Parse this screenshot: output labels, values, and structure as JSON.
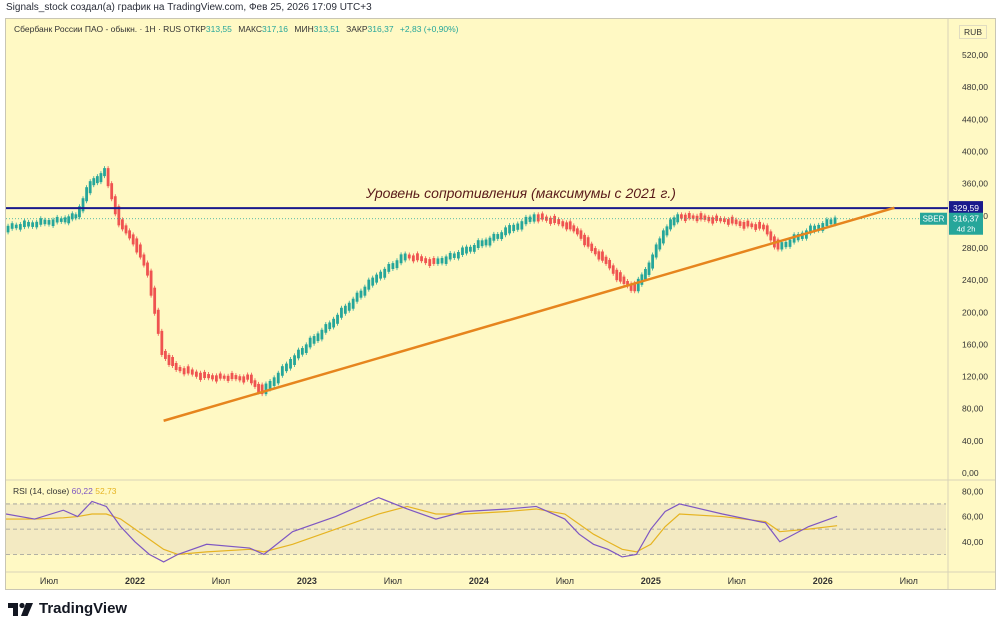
{
  "header": {
    "caption": "Signals_stock создал(а) график на TradingView.com, Фев 25, 2026 17:09 UTC+3"
  },
  "legend": {
    "symbol": "Сбербанк России ПАО - обыкн. · 1Н · RUS",
    "open_label": "ОТКР",
    "open": "313,55",
    "high_label": "МАКС",
    "high": "317,16",
    "low_label": "МИН",
    "low": "313,51",
    "close_label": "ЗАКР",
    "close": "316,37",
    "change": "+2,83 (+0,90%)"
  },
  "currency": "RUB",
  "annotation": "Уровень сопротивления (максимумы с 2021 г.)",
  "price_tags": {
    "resistance": "329,59",
    "ticker": "SBER",
    "last": "316,37",
    "countdown": "4d 2h"
  },
  "rsi_legend": {
    "label": "RSI (14, close)",
    "value": "60,22",
    "ma": "52,73"
  },
  "colors": {
    "background": "#fff9c4",
    "up": "#26a69a",
    "down": "#ef5350",
    "resistance": "#1a1a8c",
    "trendline": "#e6851e",
    "rsi": "#7e57c2",
    "rsi_ma": "#e6b422"
  },
  "brand": "TradingView",
  "chart_data": [
    {
      "type": "line",
      "title": "Сбербанк России ПАО - обыкн. · 1Н · RUS",
      "ylabel": "RUB",
      "x_ticks": [
        "Июл",
        "2022",
        "Июл",
        "2023",
        "Июл",
        "2024",
        "Июл",
        "2025",
        "Июл",
        "2026",
        "Июл"
      ],
      "y_ticks": [
        "520,00",
        "480,00",
        "440,00",
        "400,00",
        "360,00",
        "320,00",
        "280,00",
        "240,00",
        "200,00",
        "160,00",
        "120,00",
        "80,00",
        "40,00",
        "0,00"
      ],
      "ylim": [
        0,
        540
      ],
      "x": [
        "2021-04",
        "2021-06",
        "2021-08",
        "2021-09",
        "2021-10",
        "2021-11",
        "2021-12",
        "2022-01",
        "2022-02",
        "2022-03",
        "2022-04",
        "2022-06",
        "2022-09",
        "2022-10",
        "2022-12",
        "2023-03",
        "2023-06",
        "2023-08",
        "2023-10",
        "2023-12",
        "2024-03",
        "2024-05",
        "2024-07",
        "2024-08",
        "2024-09",
        "2024-10",
        "2024-11",
        "2024-12",
        "2025-01",
        "2025-02",
        "2025-03",
        "2025-06",
        "2025-09",
        "2025-10",
        "2025-12",
        "2026-02"
      ],
      "series": [
        {
          "values": [
            305,
            310,
            315,
            320,
            360,
            375,
            310,
            290,
            250,
            150,
            130,
            120,
            118,
            100,
            140,
            190,
            245,
            270,
            262,
            275,
            300,
            320,
            310,
            300,
            278,
            262,
            240,
            228,
            260,
            300,
            320,
            315,
            305,
            280,
            300,
            316
          ]
        }
      ],
      "resistance_level": 329.59,
      "trendline": {
        "start": [
          "2022-03",
          65
        ],
        "end": [
          "2026-06",
          330
        ]
      },
      "last_price": 316.37
    },
    {
      "type": "line",
      "title": "RSI (14, close)",
      "y_ticks": [
        "80,00",
        "60,00",
        "40,00"
      ],
      "ylim": [
        20,
        85
      ],
      "levels": [
        70,
        50,
        30
      ],
      "x": [
        "2021-04",
        "2021-06",
        "2021-08",
        "2021-09",
        "2021-10",
        "2021-11",
        "2021-12",
        "2022-01",
        "2022-02",
        "2022-03",
        "2022-04",
        "2022-06",
        "2022-09",
        "2022-10",
        "2022-12",
        "2023-03",
        "2023-06",
        "2023-08",
        "2023-10",
        "2023-12",
        "2024-03",
        "2024-05",
        "2024-07",
        "2024-08",
        "2024-09",
        "2024-10",
        "2024-11",
        "2024-12",
        "2025-01",
        "2025-02",
        "2025-03",
        "2025-06",
        "2025-09",
        "2025-10",
        "2025-12",
        "2026-02"
      ],
      "series": [
        {
          "name": "RSI",
          "values": [
            62,
            58,
            65,
            60,
            72,
            68,
            52,
            40,
            30,
            24,
            30,
            38,
            35,
            30,
            48,
            60,
            75,
            66,
            58,
            64,
            66,
            68,
            58,
            46,
            38,
            34,
            28,
            30,
            50,
            64,
            70,
            62,
            55,
            40,
            52,
            60.22
          ]
        },
        {
          "name": "MA",
          "values": [
            58,
            58,
            59,
            60,
            62,
            62,
            58,
            50,
            42,
            34,
            30,
            32,
            34,
            32,
            38,
            50,
            62,
            68,
            62,
            62,
            64,
            66,
            62,
            54,
            46,
            40,
            34,
            32,
            38,
            52,
            62,
            60,
            56,
            48,
            50,
            52.73
          ]
        }
      ]
    }
  ]
}
